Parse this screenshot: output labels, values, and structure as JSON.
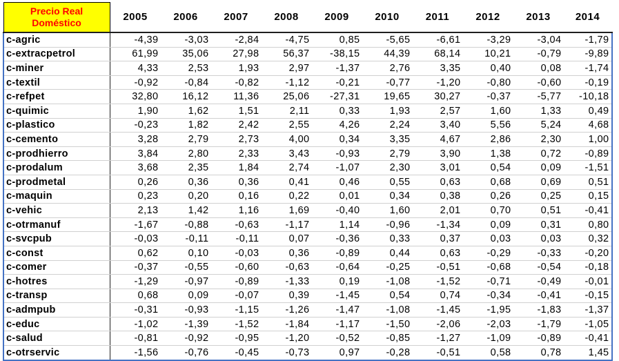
{
  "header": {
    "corner_line1": "Precio Real",
    "corner_line2": "Doméstico",
    "years": [
      "2005",
      "2006",
      "2007",
      "2008",
      "2009",
      "2010",
      "2011",
      "2012",
      "2013",
      "2014"
    ]
  },
  "colors": {
    "corner_background": "#ffff00",
    "corner_text": "#ff0000",
    "table_border": "#4472c4"
  },
  "rows": [
    {
      "label": "c-agric",
      "values": [
        "-4,39",
        "-3,03",
        "-2,84",
        "-4,75",
        "0,85",
        "-5,65",
        "-6,61",
        "-3,29",
        "-3,04",
        "-1,79"
      ]
    },
    {
      "label": "c-extracpetrol",
      "values": [
        "61,99",
        "35,06",
        "27,98",
        "56,37",
        "-38,15",
        "44,39",
        "68,14",
        "10,21",
        "-0,79",
        "-9,89"
      ]
    },
    {
      "label": "c-miner",
      "values": [
        "4,33",
        "2,53",
        "1,93",
        "2,97",
        "-1,37",
        "2,76",
        "3,35",
        "0,40",
        "0,08",
        "-1,74"
      ]
    },
    {
      "label": "c-textil",
      "values": [
        "-0,92",
        "-0,84",
        "-0,82",
        "-1,12",
        "-0,21",
        "-0,77",
        "-1,20",
        "-0,80",
        "-0,60",
        "-0,19"
      ]
    },
    {
      "label": "c-refpet",
      "values": [
        "32,80",
        "16,12",
        "11,36",
        "25,06",
        "-27,31",
        "19,65",
        "30,27",
        "-0,37",
        "-5,77",
        "-10,18"
      ]
    },
    {
      "label": "c-quimic",
      "values": [
        "1,90",
        "1,62",
        "1,51",
        "2,11",
        "0,33",
        "1,93",
        "2,57",
        "1,60",
        "1,33",
        "0,49"
      ]
    },
    {
      "label": "c-plastico",
      "values": [
        "-0,23",
        "1,82",
        "2,42",
        "2,55",
        "4,26",
        "2,24",
        "3,40",
        "5,56",
        "5,24",
        "4,68"
      ]
    },
    {
      "label": "c-cemento",
      "values": [
        "3,28",
        "2,79",
        "2,73",
        "4,00",
        "0,34",
        "3,35",
        "4,67",
        "2,86",
        "2,30",
        "1,00"
      ]
    },
    {
      "label": "c-prodhierro",
      "values": [
        "3,84",
        "2,80",
        "2,33",
        "3,43",
        "-0,93",
        "2,79",
        "3,90",
        "1,38",
        "0,72",
        "-0,89"
      ]
    },
    {
      "label": "c-prodalum",
      "values": [
        "3,68",
        "2,35",
        "1,84",
        "2,74",
        "-1,07",
        "2,30",
        "3,01",
        "0,54",
        "0,09",
        "-1,51"
      ]
    },
    {
      "label": "c-prodmetal",
      "values": [
        "0,26",
        "0,36",
        "0,36",
        "0,41",
        "0,46",
        "0,55",
        "0,63",
        "0,68",
        "0,69",
        "0,51"
      ]
    },
    {
      "label": "c-maquin",
      "values": [
        "0,23",
        "0,20",
        "0,16",
        "0,22",
        "0,01",
        "0,34",
        "0,38",
        "0,26",
        "0,25",
        "0,15"
      ]
    },
    {
      "label": "c-vehic",
      "values": [
        "2,13",
        "1,42",
        "1,16",
        "1,69",
        "-0,40",
        "1,60",
        "2,01",
        "0,70",
        "0,51",
        "-0,41"
      ]
    },
    {
      "label": "c-otrmanuf",
      "values": [
        "-1,67",
        "-0,88",
        "-0,63",
        "-1,17",
        "1,14",
        "-0,96",
        "-1,34",
        "0,09",
        "0,31",
        "0,80"
      ]
    },
    {
      "label": "c-svcpub",
      "values": [
        "-0,03",
        "-0,11",
        "-0,11",
        "0,07",
        "-0,36",
        "0,33",
        "0,37",
        "0,03",
        "0,03",
        "0,32"
      ]
    },
    {
      "label": "c-const",
      "values": [
        "0,62",
        "0,10",
        "-0,03",
        "0,36",
        "-0,89",
        "0,44",
        "0,63",
        "-0,29",
        "-0,33",
        "-0,20"
      ]
    },
    {
      "label": "c-comer",
      "values": [
        "-0,37",
        "-0,55",
        "-0,60",
        "-0,63",
        "-0,64",
        "-0,25",
        "-0,51",
        "-0,68",
        "-0,54",
        "-0,18"
      ]
    },
    {
      "label": "c-hotres",
      "values": [
        "-1,29",
        "-0,97",
        "-0,89",
        "-1,33",
        "0,19",
        "-1,08",
        "-1,52",
        "-0,71",
        "-0,49",
        "-0,01"
      ]
    },
    {
      "label": "c-transp",
      "values": [
        "0,68",
        "0,09",
        "-0,07",
        "0,39",
        "-1,45",
        "0,54",
        "0,74",
        "-0,34",
        "-0,41",
        "-0,15"
      ]
    },
    {
      "label": "c-admpub",
      "values": [
        "-0,31",
        "-0,93",
        "-1,15",
        "-1,26",
        "-1,47",
        "-1,08",
        "-1,45",
        "-1,95",
        "-1,83",
        "-1,37"
      ]
    },
    {
      "label": "c-educ",
      "values": [
        "-1,02",
        "-1,39",
        "-1,52",
        "-1,84",
        "-1,17",
        "-1,50",
        "-2,06",
        "-2,03",
        "-1,79",
        "-1,05"
      ]
    },
    {
      "label": "c-salud",
      "values": [
        "-0,81",
        "-0,92",
        "-0,95",
        "-1,20",
        "-0,52",
        "-0,85",
        "-1,27",
        "-1,09",
        "-0,89",
        "-0,41"
      ]
    },
    {
      "label": "c-otrservic",
      "values": [
        "-1,56",
        "-0,76",
        "-0,45",
        "-0,73",
        "0,97",
        "-0,28",
        "-0,51",
        "0,58",
        "0,78",
        "1,45"
      ]
    }
  ]
}
